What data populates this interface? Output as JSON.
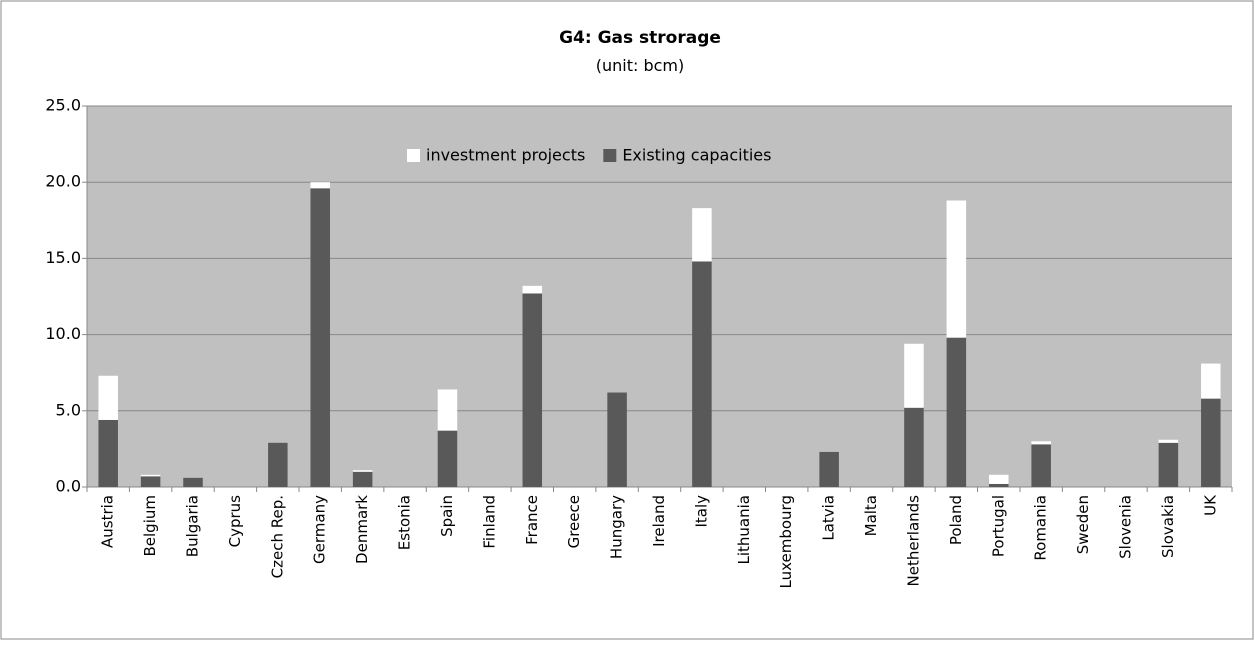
{
  "chart_data": {
    "type": "stacked_bar",
    "title": "G4: Gas strorage",
    "subtitle": "(unit: bcm)",
    "categories": [
      "Austria",
      "Belgium",
      "Bulgaria",
      "Cyprus",
      "Czech Rep.",
      "Germany",
      "Denmark",
      "Estonia",
      "Spain",
      "Finland",
      "France",
      "Greece",
      "Hungary",
      "Ireland",
      "Italy",
      "Lithuania",
      "Luxembourg",
      "Latvia",
      "Malta",
      "Netherlands",
      "Poland",
      "Portugal",
      "Romania",
      "Sweden",
      "Slovenia",
      "Slovakia",
      "UK"
    ],
    "series": [
      {
        "name": "investment projects",
        "color": "#ffffff",
        "values": [
          2.9,
          0.1,
          0,
          0,
          0,
          0.4,
          0.1,
          0,
          2.7,
          0,
          0.5,
          0,
          0,
          0,
          3.5,
          0,
          0,
          0,
          0,
          4.2,
          9.0,
          0.6,
          0.2,
          0,
          0,
          0.2,
          2.3
        ]
      },
      {
        "name": "Existing capacities",
        "color": "#595959",
        "values": [
          4.4,
          0.7,
          0.6,
          0,
          2.9,
          19.6,
          1.0,
          0,
          3.7,
          0,
          12.7,
          0,
          6.2,
          0,
          14.8,
          0,
          0,
          2.3,
          0,
          5.2,
          9.8,
          0.2,
          2.8,
          0,
          0,
          2.9,
          5.8
        ]
      }
    ],
    "ylim": [
      0,
      25
    ],
    "yticks": [
      {
        "value": 0,
        "label": "0.0"
      },
      {
        "value": 5,
        "label": "5.0"
      },
      {
        "value": 10,
        "label": "10.0"
      },
      {
        "value": 15,
        "label": "15.0"
      },
      {
        "value": 20,
        "label": "20.0"
      },
      {
        "value": 25,
        "label": "25.0"
      }
    ],
    "grid": true,
    "legend": "top"
  }
}
